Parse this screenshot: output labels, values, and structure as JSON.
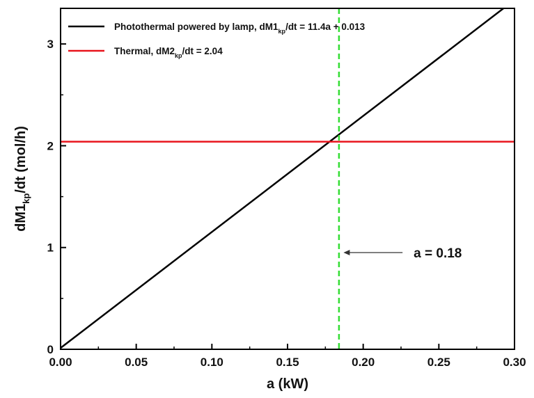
{
  "chart_data": {
    "type": "line",
    "xlabel": "a (kW)",
    "ylabel": {
      "main": "dM1",
      "sub": "kp",
      "tail": "/dt (mol/h)"
    },
    "xlim": [
      0,
      0.3
    ],
    "ylim": [
      0,
      3.35
    ],
    "x_ticks": [
      0.0,
      0.05,
      0.1,
      0.15,
      0.2,
      0.25,
      0.3
    ],
    "x_tick_labels": [
      "0.00",
      "0.05",
      "0.10",
      "0.15",
      "0.20",
      "0.25",
      "0.30"
    ],
    "y_ticks": [
      0,
      1,
      2,
      3
    ],
    "y_tick_labels": [
      "0",
      "1",
      "2",
      "3"
    ],
    "grid": false,
    "legend_position": "top-left",
    "series": [
      {
        "name": "Photothermal powered by lamp",
        "legend": {
          "pre": "Photothermal powered by lamp, dM1",
          "sub": "kp",
          "post": "/dt = 11.4a + 0.013"
        },
        "color": "#000000",
        "style": "solid",
        "x": [
          0.0,
          0.3
        ],
        "y": [
          0.013,
          3.433
        ]
      },
      {
        "name": "Thermal",
        "legend": {
          "pre": "Thermal, dM2",
          "sub": "kp",
          "post": "/dt = 2.04"
        },
        "color": "#e8141c",
        "style": "solid",
        "x": [
          0.0,
          0.3
        ],
        "y": [
          2.04,
          2.04
        ]
      }
    ],
    "vertical_line": {
      "x": 0.184,
      "color": "#33dd33",
      "style": "dashed"
    },
    "annotation": {
      "text": "a = 0.18",
      "arrow_from_x": 0.226,
      "arrow_to_x": 0.187,
      "y": 0.95
    }
  }
}
